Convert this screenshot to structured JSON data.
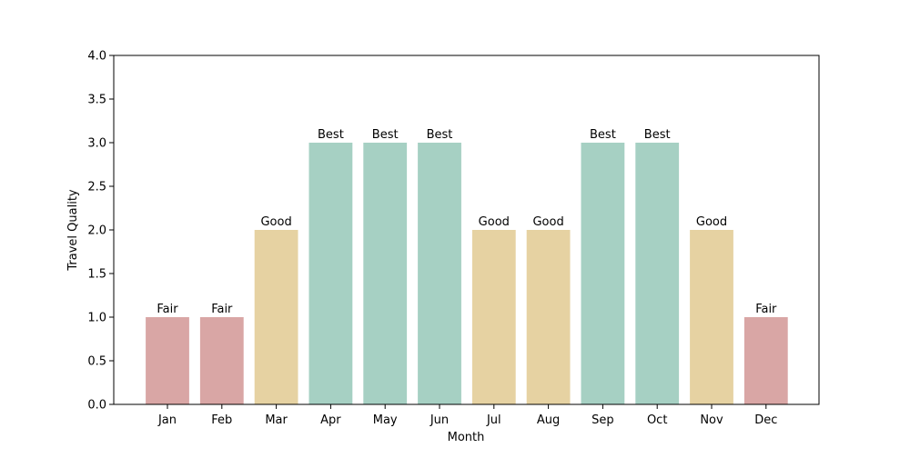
{
  "chart_data": {
    "type": "bar",
    "title": "",
    "xlabel": "Month",
    "ylabel": "Travel Quality",
    "ylim": [
      0,
      4.0
    ],
    "y_ticks": [
      "0.0",
      "0.5",
      "1.0",
      "1.5",
      "2.0",
      "2.5",
      "3.0",
      "3.5",
      "4.0"
    ],
    "categories": [
      "Jan",
      "Feb",
      "Mar",
      "Apr",
      "May",
      "Jun",
      "Jul",
      "Aug",
      "Sep",
      "Oct",
      "Nov",
      "Dec"
    ],
    "values": [
      1,
      1,
      2,
      3,
      3,
      3,
      2,
      2,
      3,
      3,
      2,
      1
    ],
    "bar_labels": [
      "Fair",
      "Fair",
      "Good",
      "Best",
      "Best",
      "Best",
      "Good",
      "Good",
      "Best",
      "Best",
      "Good",
      "Fair"
    ],
    "colors": {
      "Fair": "#d9a6a5",
      "Good": "#e6d2a2",
      "Best": "#a6d0c3"
    },
    "grid": false,
    "legend": "none"
  }
}
